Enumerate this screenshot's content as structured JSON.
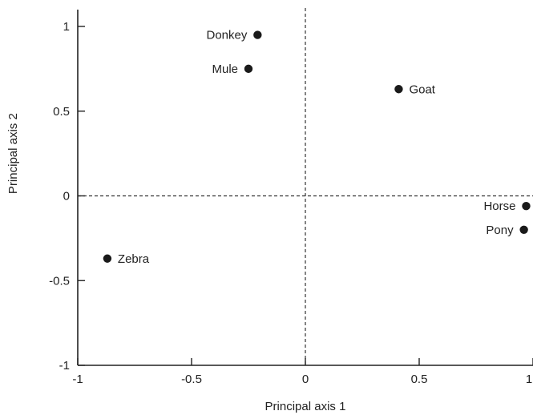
{
  "chart_data": {
    "type": "scatter",
    "xlabel": "Principal axis 1",
    "ylabel": "Principal axis 2",
    "xlim": [
      -1,
      1
    ],
    "ylim": [
      -1,
      1.1
    ],
    "x_ticks": [
      "-1",
      "-0.5",
      "0",
      "0.5",
      "1"
    ],
    "y_ticks": [
      "-1",
      "-0.5",
      "0",
      "0.5",
      "1"
    ],
    "reference_lines": {
      "x": 0,
      "y": 0,
      "style": "dashed"
    },
    "points": [
      {
        "label": "Donkey",
        "x": -0.21,
        "y": 0.95,
        "label_side": "left"
      },
      {
        "label": "Mule",
        "x": -0.25,
        "y": 0.75,
        "label_side": "left"
      },
      {
        "label": "Goat",
        "x": 0.41,
        "y": 0.63,
        "label_side": "right"
      },
      {
        "label": "Horse",
        "x": 0.97,
        "y": -0.06,
        "label_side": "left"
      },
      {
        "label": "Pony",
        "x": 0.96,
        "y": -0.2,
        "label_side": "left"
      },
      {
        "label": "Zebra",
        "x": -0.87,
        "y": -0.37,
        "label_side": "right"
      }
    ],
    "marker_color": "#1a1a1a",
    "grid": false
  }
}
